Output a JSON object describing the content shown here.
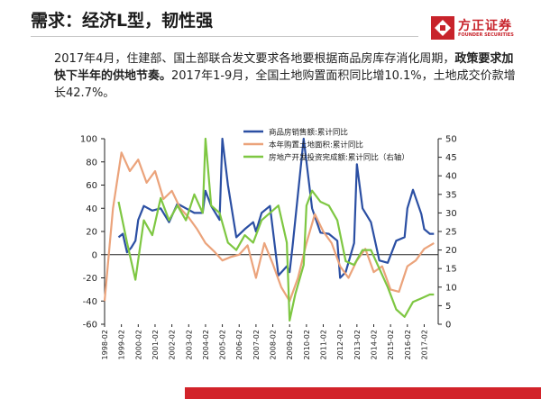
{
  "slide": {
    "title": "需求：经济L型，韧性强",
    "body_part1": "2017年4月，住建部、国土部联合发文要求各地要根据商品房库存消化周期，",
    "body_bold": "政策要求加快下半年的供地节奏。",
    "body_part2": "2017年1-9月，全国土地购置面积同比增10.1%，土地成交价款增长42.7%。"
  },
  "logo": {
    "text_cn": "方正证券",
    "text_en": "FOUNDER SECURITIES",
    "color": "#c8232b"
  },
  "chart_data": {
    "type": "line",
    "x_start": "1998-02",
    "x_ticks": [
      "1998-02",
      "1999-02",
      "2000-02",
      "2001-02",
      "2002-02",
      "2003-02",
      "2004-02",
      "2005-02",
      "2006-02",
      "2007-02",
      "2008-02",
      "2009-02",
      "2010-02",
      "2011-02",
      "2012-02",
      "2013-02",
      "2014-02",
      "2015-02",
      "2016-02",
      "2017-02"
    ],
    "ylim_left": [
      -60,
      100
    ],
    "yticks_left": [
      100,
      80,
      60,
      40,
      20,
      0,
      -20,
      -40,
      -60
    ],
    "ylim_right": [
      0,
      50
    ],
    "yticks_right": [
      50,
      45,
      40,
      35,
      30,
      25,
      20,
      15,
      10,
      5,
      0
    ],
    "legend": "top-right",
    "series": [
      {
        "name": "商品房销售额:累计同比",
        "axis": "left",
        "color": "#2b4fa3",
        "values": [
          {
            "x": "1998-12",
            "y": 15
          },
          {
            "x": "1999-03",
            "y": 18
          },
          {
            "x": "1999-06",
            "y": 2
          },
          {
            "x": "1999-09",
            "y": 6
          },
          {
            "x": "1999-12",
            "y": 12
          },
          {
            "x": "2000-02",
            "y": 30
          },
          {
            "x": "2000-06",
            "y": 42
          },
          {
            "x": "2000-12",
            "y": 38
          },
          {
            "x": "2001-06",
            "y": 40
          },
          {
            "x": "2001-12",
            "y": 28
          },
          {
            "x": "2002-06",
            "y": 44
          },
          {
            "x": "2002-12",
            "y": 40
          },
          {
            "x": "2003-06",
            "y": 36
          },
          {
            "x": "2003-12",
            "y": 36
          },
          {
            "x": "2004-02",
            "y": 55
          },
          {
            "x": "2004-06",
            "y": 42
          },
          {
            "x": "2004-12",
            "y": 30
          },
          {
            "x": "2005-02",
            "y": 100
          },
          {
            "x": "2005-06",
            "y": 60
          },
          {
            "x": "2005-12",
            "y": 15
          },
          {
            "x": "2006-06",
            "y": 22
          },
          {
            "x": "2006-12",
            "y": 28
          },
          {
            "x": "2007-02",
            "y": 20
          },
          {
            "x": "2007-06",
            "y": 36
          },
          {
            "x": "2007-12",
            "y": 42
          },
          {
            "x": "2008-06",
            "y": -18
          },
          {
            "x": "2008-12",
            "y": -10
          },
          {
            "x": "2009-02",
            "y": -15
          },
          {
            "x": "2009-04",
            "y": 6
          },
          {
            "x": "2009-12",
            "y": 100
          },
          {
            "x": "2010-06",
            "y": 40
          },
          {
            "x": "2010-12",
            "y": 19
          },
          {
            "x": "2011-06",
            "y": 18
          },
          {
            "x": "2011-12",
            "y": 12
          },
          {
            "x": "2012-02",
            "y": -20
          },
          {
            "x": "2012-06",
            "y": -15
          },
          {
            "x": "2012-12",
            "y": 10
          },
          {
            "x": "2013-02",
            "y": 78
          },
          {
            "x": "2013-06",
            "y": 40
          },
          {
            "x": "2013-12",
            "y": 28
          },
          {
            "x": "2014-06",
            "y": -5
          },
          {
            "x": "2014-12",
            "y": -7
          },
          {
            "x": "2015-06",
            "y": 12
          },
          {
            "x": "2015-12",
            "y": 15
          },
          {
            "x": "2016-02",
            "y": 40
          },
          {
            "x": "2016-06",
            "y": 56
          },
          {
            "x": "2016-12",
            "y": 35
          },
          {
            "x": "2017-02",
            "y": 22
          },
          {
            "x": "2017-06",
            "y": 18
          },
          {
            "x": "2017-09",
            "y": 18
          }
        ]
      },
      {
        "name": "本年购置土地面积:累计同比",
        "axis": "left",
        "color": "#eba37b",
        "values": [
          {
            "x": "1998-02",
            "y": -40
          },
          {
            "x": "1998-08",
            "y": 40
          },
          {
            "x": "1999-02",
            "y": 88
          },
          {
            "x": "1999-08",
            "y": 72
          },
          {
            "x": "2000-02",
            "y": 82
          },
          {
            "x": "2000-08",
            "y": 62
          },
          {
            "x": "2001-02",
            "y": 72
          },
          {
            "x": "2001-08",
            "y": 48
          },
          {
            "x": "2002-02",
            "y": 55
          },
          {
            "x": "2002-08",
            "y": 40
          },
          {
            "x": "2003-02",
            "y": 32
          },
          {
            "x": "2003-08",
            "y": 22
          },
          {
            "x": "2004-02",
            "y": 10
          },
          {
            "x": "2004-08",
            "y": 3
          },
          {
            "x": "2005-02",
            "y": -5
          },
          {
            "x": "2005-08",
            "y": -2
          },
          {
            "x": "2006-02",
            "y": 0
          },
          {
            "x": "2006-08",
            "y": 8
          },
          {
            "x": "2007-02",
            "y": -20
          },
          {
            "x": "2007-08",
            "y": 10
          },
          {
            "x": "2008-02",
            "y": -8
          },
          {
            "x": "2008-08",
            "y": -28
          },
          {
            "x": "2009-02",
            "y": -40
          },
          {
            "x": "2009-08",
            "y": -20
          },
          {
            "x": "2010-02",
            "y": 10
          },
          {
            "x": "2010-08",
            "y": 35
          },
          {
            "x": "2011-02",
            "y": 20
          },
          {
            "x": "2011-08",
            "y": 10
          },
          {
            "x": "2012-02",
            "y": -10
          },
          {
            "x": "2012-08",
            "y": -20
          },
          {
            "x": "2013-02",
            "y": -5
          },
          {
            "x": "2013-08",
            "y": 5
          },
          {
            "x": "2014-02",
            "y": -15
          },
          {
            "x": "2014-08",
            "y": -10
          },
          {
            "x": "2015-02",
            "y": -30
          },
          {
            "x": "2015-08",
            "y": -32
          },
          {
            "x": "2016-02",
            "y": -10
          },
          {
            "x": "2016-08",
            "y": -5
          },
          {
            "x": "2017-02",
            "y": 5
          },
          {
            "x": "2017-09",
            "y": 10
          }
        ]
      },
      {
        "name": "房地产开发投资完成额:累计同比（右轴）",
        "axis": "right",
        "color": "#7ec742",
        "values": [
          {
            "x": "1998-12",
            "y": 33
          },
          {
            "x": "1999-06",
            "y": 22
          },
          {
            "x": "1999-12",
            "y": 12
          },
          {
            "x": "2000-06",
            "y": 28
          },
          {
            "x": "2000-12",
            "y": 24
          },
          {
            "x": "2001-06",
            "y": 34
          },
          {
            "x": "2001-12",
            "y": 28
          },
          {
            "x": "2002-06",
            "y": 32
          },
          {
            "x": "2002-12",
            "y": 28
          },
          {
            "x": "2003-06",
            "y": 35
          },
          {
            "x": "2003-12",
            "y": 30
          },
          {
            "x": "2004-02",
            "y": 50
          },
          {
            "x": "2004-06",
            "y": 32
          },
          {
            "x": "2004-12",
            "y": 30
          },
          {
            "x": "2005-06",
            "y": 22
          },
          {
            "x": "2005-12",
            "y": 20
          },
          {
            "x": "2006-06",
            "y": 24
          },
          {
            "x": "2006-12",
            "y": 22
          },
          {
            "x": "2007-06",
            "y": 28
          },
          {
            "x": "2007-12",
            "y": 30
          },
          {
            "x": "2008-06",
            "y": 32
          },
          {
            "x": "2008-12",
            "y": 22
          },
          {
            "x": "2009-02",
            "y": 1
          },
          {
            "x": "2009-06",
            "y": 8
          },
          {
            "x": "2009-12",
            "y": 16
          },
          {
            "x": "2010-02",
            "y": 32
          },
          {
            "x": "2010-06",
            "y": 36
          },
          {
            "x": "2010-12",
            "y": 33
          },
          {
            "x": "2011-06",
            "y": 32
          },
          {
            "x": "2011-12",
            "y": 28
          },
          {
            "x": "2012-06",
            "y": 17
          },
          {
            "x": "2012-12",
            "y": 16
          },
          {
            "x": "2013-06",
            "y": 20
          },
          {
            "x": "2013-12",
            "y": 20
          },
          {
            "x": "2014-06",
            "y": 15
          },
          {
            "x": "2014-12",
            "y": 10
          },
          {
            "x": "2015-06",
            "y": 4
          },
          {
            "x": "2015-12",
            "y": 2
          },
          {
            "x": "2016-06",
            "y": 6
          },
          {
            "x": "2016-12",
            "y": 7
          },
          {
            "x": "2017-06",
            "y": 8
          },
          {
            "x": "2017-09",
            "y": 8
          }
        ]
      }
    ]
  }
}
